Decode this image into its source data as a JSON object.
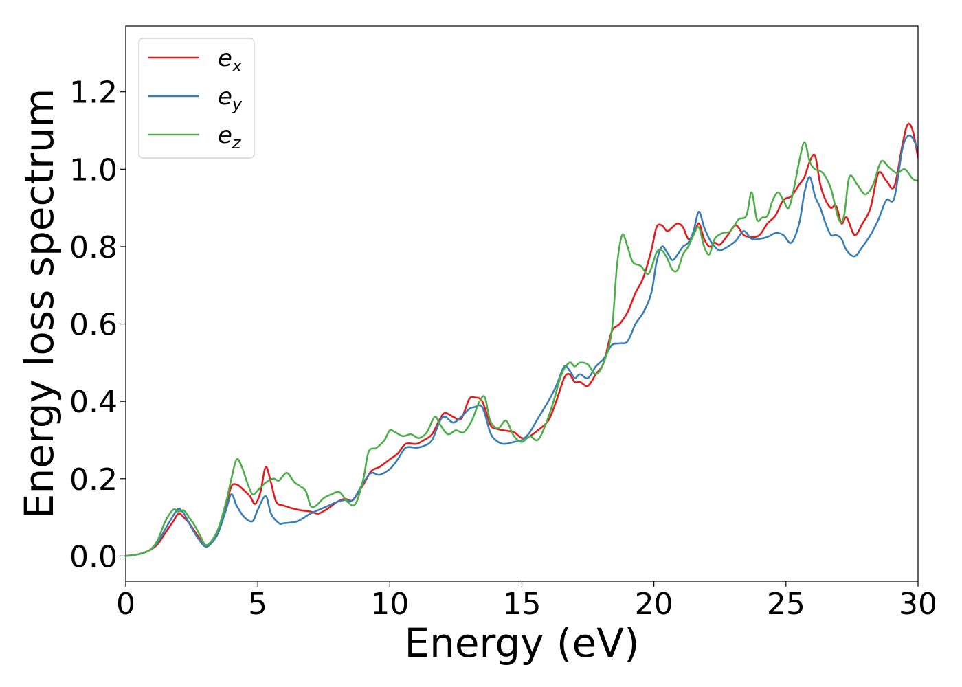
{
  "chart_data": {
    "type": "line",
    "xlabel": "Energy (eV)",
    "ylabel": "Energy loss spectrum",
    "xlim": [
      0,
      30
    ],
    "ylim": [
      -0.065,
      1.37
    ],
    "xticks": [
      0,
      5,
      10,
      15,
      20,
      25,
      30
    ],
    "xtick_labels": [
      "0",
      "5",
      "10",
      "15",
      "20",
      "25",
      "30"
    ],
    "yticks": [
      0.0,
      0.2,
      0.4,
      0.6,
      0.8,
      1.0,
      1.2
    ],
    "ytick_labels": [
      "0.0",
      "0.2",
      "0.4",
      "0.6",
      "0.8",
      "1.0",
      "1.2"
    ],
    "grid": false,
    "legend_position": "top-left",
    "series": [
      {
        "name": "e",
        "subscript": "x",
        "color": "#e41a1c",
        "x": [
          0,
          0.5,
          0.9,
          1.2,
          1.5,
          1.8,
          2.0,
          2.2,
          2.4,
          2.6,
          2.8,
          3.0,
          3.2,
          3.5,
          3.8,
          4.0,
          4.2,
          4.4,
          4.7,
          4.9,
          5.1,
          5.3,
          5.5,
          5.7,
          6.0,
          6.5,
          7.0,
          7.3,
          7.7,
          8.0,
          8.3,
          8.6,
          9.0,
          9.3,
          9.6,
          10.0,
          10.3,
          10.6,
          11.0,
          11.3,
          11.6,
          11.9,
          12.1,
          12.4,
          12.7,
          13.0,
          13.2,
          13.5,
          13.8,
          14.0,
          14.3,
          14.7,
          15.0,
          15.3,
          15.6,
          16.0,
          16.3,
          16.6,
          16.8,
          17.0,
          17.2,
          17.5,
          17.8,
          18.1,
          18.4,
          18.7,
          19.0,
          19.3,
          19.6,
          19.9,
          20.1,
          20.3,
          20.5,
          20.7,
          20.9,
          21.1,
          21.3,
          21.5,
          21.7,
          21.9,
          22.1,
          22.3,
          22.5,
          22.8,
          23.1,
          23.4,
          23.7,
          24.0,
          24.3,
          24.6,
          24.9,
          25.2,
          25.5,
          25.7,
          25.9,
          26.1,
          26.3,
          26.5,
          26.7,
          26.9,
          27.1,
          27.3,
          27.6,
          27.9,
          28.2,
          28.5,
          28.8,
          29.1,
          29.4,
          29.6,
          29.8,
          30.0
        ],
        "y": [
          0.0,
          0.005,
          0.015,
          0.03,
          0.06,
          0.09,
          0.11,
          0.1,
          0.085,
          0.065,
          0.045,
          0.028,
          0.032,
          0.06,
          0.13,
          0.18,
          0.185,
          0.175,
          0.155,
          0.135,
          0.165,
          0.23,
          0.19,
          0.14,
          0.13,
          0.12,
          0.115,
          0.11,
          0.125,
          0.14,
          0.148,
          0.145,
          0.185,
          0.22,
          0.23,
          0.25,
          0.265,
          0.29,
          0.29,
          0.3,
          0.315,
          0.355,
          0.37,
          0.36,
          0.355,
          0.405,
          0.41,
          0.4,
          0.34,
          0.33,
          0.325,
          0.32,
          0.305,
          0.31,
          0.325,
          0.35,
          0.4,
          0.46,
          0.47,
          0.45,
          0.45,
          0.44,
          0.47,
          0.5,
          0.58,
          0.6,
          0.63,
          0.68,
          0.72,
          0.79,
          0.85,
          0.855,
          0.84,
          0.85,
          0.86,
          0.85,
          0.82,
          0.83,
          0.86,
          0.82,
          0.8,
          0.81,
          0.805,
          0.83,
          0.855,
          0.83,
          0.825,
          0.83,
          0.86,
          0.88,
          0.92,
          0.93,
          0.96,
          0.98,
          1.02,
          1.035,
          0.96,
          0.92,
          0.9,
          0.905,
          0.86,
          0.875,
          0.83,
          0.86,
          0.9,
          0.99,
          0.97,
          0.955,
          1.06,
          1.115,
          1.1,
          1.03
        ]
      },
      {
        "name": "e",
        "subscript": "y",
        "color": "#377eb8",
        "x": [
          0,
          0.5,
          0.9,
          1.2,
          1.5,
          1.8,
          2.0,
          2.2,
          2.4,
          2.6,
          2.8,
          3.0,
          3.2,
          3.5,
          3.8,
          4.0,
          4.2,
          4.5,
          4.8,
          5.0,
          5.3,
          5.5,
          5.8,
          6.0,
          6.5,
          7.0,
          7.5,
          8.0,
          8.3,
          8.6,
          9.0,
          9.3,
          9.6,
          10.0,
          10.3,
          10.6,
          11.0,
          11.3,
          11.6,
          11.9,
          12.1,
          12.4,
          12.7,
          13.0,
          13.2,
          13.5,
          13.8,
          14.0,
          14.3,
          14.7,
          15.0,
          15.3,
          15.6,
          16.0,
          16.3,
          16.6,
          16.8,
          17.0,
          17.2,
          17.5,
          17.8,
          18.1,
          18.4,
          18.7,
          19.0,
          19.3,
          19.6,
          19.9,
          20.1,
          20.3,
          20.5,
          20.7,
          20.9,
          21.1,
          21.3,
          21.5,
          21.7,
          21.9,
          22.1,
          22.3,
          22.5,
          22.8,
          23.1,
          23.4,
          23.7,
          24.0,
          24.3,
          24.6,
          24.9,
          25.2,
          25.5,
          25.7,
          25.9,
          26.1,
          26.3,
          26.5,
          26.7,
          26.9,
          27.1,
          27.3,
          27.6,
          27.9,
          28.2,
          28.5,
          28.8,
          29.1,
          29.4,
          29.6,
          29.8,
          30.0
        ],
        "y": [
          0.0,
          0.005,
          0.015,
          0.035,
          0.07,
          0.105,
          0.122,
          0.11,
          0.085,
          0.06,
          0.04,
          0.025,
          0.03,
          0.06,
          0.12,
          0.16,
          0.13,
          0.1,
          0.09,
          0.12,
          0.155,
          0.11,
          0.085,
          0.085,
          0.09,
          0.11,
          0.125,
          0.14,
          0.145,
          0.145,
          0.19,
          0.215,
          0.21,
          0.225,
          0.25,
          0.28,
          0.28,
          0.285,
          0.3,
          0.35,
          0.36,
          0.345,
          0.36,
          0.38,
          0.385,
          0.385,
          0.32,
          0.3,
          0.29,
          0.295,
          0.3,
          0.32,
          0.355,
          0.4,
          0.44,
          0.49,
          0.48,
          0.46,
          0.47,
          0.46,
          0.49,
          0.51,
          0.545,
          0.55,
          0.555,
          0.6,
          0.63,
          0.68,
          0.76,
          0.8,
          0.785,
          0.765,
          0.78,
          0.8,
          0.81,
          0.84,
          0.89,
          0.85,
          0.82,
          0.8,
          0.79,
          0.8,
          0.815,
          0.84,
          0.82,
          0.82,
          0.825,
          0.835,
          0.83,
          0.81,
          0.86,
          0.94,
          0.98,
          0.93,
          0.9,
          0.86,
          0.83,
          0.83,
          0.82,
          0.79,
          0.775,
          0.8,
          0.83,
          0.87,
          0.92,
          0.925,
          1.05,
          1.085,
          1.08,
          1.05
        ]
      },
      {
        "name": "e",
        "subscript": "z",
        "color": "#4daf4a",
        "x": [
          0,
          0.5,
          0.9,
          1.2,
          1.5,
          1.8,
          2.0,
          2.2,
          2.4,
          2.6,
          2.8,
          3.0,
          3.2,
          3.5,
          3.8,
          4.0,
          4.2,
          4.4,
          4.6,
          4.8,
          5.0,
          5.3,
          5.6,
          5.8,
          6.1,
          6.4,
          6.8,
          7.0,
          7.2,
          7.5,
          7.8,
          8.1,
          8.4,
          8.7,
          9.0,
          9.2,
          9.5,
          9.8,
          10.0,
          10.2,
          10.5,
          10.8,
          11.1,
          11.4,
          11.7,
          11.9,
          12.2,
          12.5,
          12.8,
          13.1,
          13.4,
          13.6,
          13.8,
          14.1,
          14.4,
          14.7,
          15.0,
          15.3,
          15.6,
          15.9,
          16.2,
          16.5,
          16.8,
          17.0,
          17.2,
          17.5,
          17.8,
          18.1,
          18.4,
          18.6,
          18.8,
          19.0,
          19.2,
          19.5,
          19.8,
          20.1,
          20.3,
          20.5,
          20.7,
          20.9,
          21.1,
          21.3,
          21.5,
          21.7,
          21.9,
          22.1,
          22.3,
          22.6,
          22.9,
          23.2,
          23.5,
          23.7,
          23.9,
          24.1,
          24.3,
          24.5,
          24.7,
          24.9,
          25.1,
          25.3,
          25.5,
          25.7,
          25.9,
          26.1,
          26.4,
          26.7,
          27.0,
          27.2,
          27.4,
          27.7,
          28.0,
          28.3,
          28.6,
          28.9,
          29.2,
          29.5,
          29.8,
          30.0
        ],
        "y": [
          0.0,
          0.005,
          0.015,
          0.04,
          0.09,
          0.12,
          0.115,
          0.118,
          0.1,
          0.08,
          0.055,
          0.03,
          0.035,
          0.07,
          0.14,
          0.2,
          0.25,
          0.23,
          0.19,
          0.16,
          0.17,
          0.19,
          0.2,
          0.195,
          0.215,
          0.19,
          0.17,
          0.13,
          0.13,
          0.15,
          0.16,
          0.165,
          0.14,
          0.135,
          0.2,
          0.27,
          0.28,
          0.3,
          0.325,
          0.32,
          0.31,
          0.315,
          0.305,
          0.32,
          0.36,
          0.34,
          0.315,
          0.325,
          0.32,
          0.35,
          0.4,
          0.41,
          0.35,
          0.33,
          0.35,
          0.31,
          0.295,
          0.31,
          0.3,
          0.34,
          0.4,
          0.47,
          0.5,
          0.49,
          0.5,
          0.495,
          0.47,
          0.5,
          0.58,
          0.75,
          0.83,
          0.8,
          0.76,
          0.75,
          0.73,
          0.785,
          0.79,
          0.77,
          0.74,
          0.74,
          0.78,
          0.8,
          0.83,
          0.85,
          0.8,
          0.78,
          0.82,
          0.835,
          0.84,
          0.87,
          0.88,
          0.94,
          0.87,
          0.875,
          0.88,
          0.92,
          0.94,
          0.92,
          0.9,
          0.95,
          1.02,
          1.07,
          1.02,
          1.0,
          0.99,
          0.95,
          0.87,
          0.88,
          0.98,
          0.96,
          0.935,
          0.96,
          1.02,
          1.005,
          0.99,
          1.0,
          0.975,
          0.97
        ]
      }
    ]
  }
}
